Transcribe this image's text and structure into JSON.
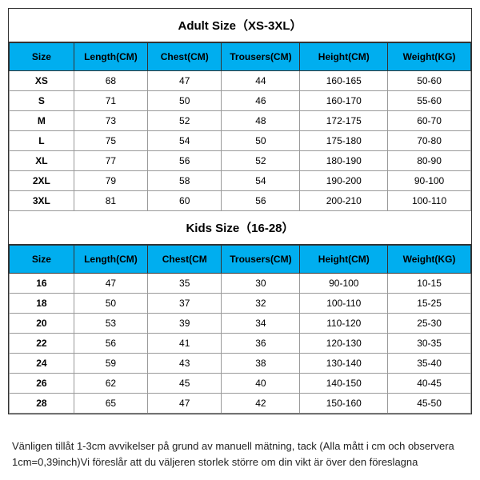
{
  "adult": {
    "title": "Adult Size（XS-3XL）",
    "columns": [
      "Size",
      "Length(CM)",
      "Chest(CM)",
      "Trousers(CM)",
      "Height(CM)",
      "Weight(KG)"
    ],
    "rows": [
      [
        "XS",
        "68",
        "47",
        "44",
        "160-165",
        "50-60"
      ],
      [
        "S",
        "71",
        "50",
        "46",
        "160-170",
        "55-60"
      ],
      [
        "M",
        "73",
        "52",
        "48",
        "172-175",
        "60-70"
      ],
      [
        "L",
        "75",
        "54",
        "50",
        "175-180",
        "70-80"
      ],
      [
        "XL",
        "77",
        "56",
        "52",
        "180-190",
        "80-90"
      ],
      [
        "2XL",
        "79",
        "58",
        "54",
        "190-200",
        "90-100"
      ],
      [
        "3XL",
        "81",
        "60",
        "56",
        "200-210",
        "100-110"
      ]
    ]
  },
  "kids": {
    "title": "Kids Size（16-28）",
    "columns": [
      "Size",
      "Length(CM)",
      "Chest(CM",
      "Trousers(CM)",
      "Height(CM)",
      "Weight(KG)"
    ],
    "rows": [
      [
        "16",
        "47",
        "35",
        "30",
        "90-100",
        "10-15"
      ],
      [
        "18",
        "50",
        "37",
        "32",
        "100-110",
        "15-25"
      ],
      [
        "20",
        "53",
        "39",
        "34",
        "110-120",
        "25-30"
      ],
      [
        "22",
        "56",
        "41",
        "36",
        "120-130",
        "30-35"
      ],
      [
        "24",
        "59",
        "43",
        "38",
        "130-140",
        "35-40"
      ],
      [
        "26",
        "62",
        "45",
        "40",
        "140-150",
        "40-45"
      ],
      [
        "28",
        "65",
        "47",
        "42",
        "150-160",
        "45-50"
      ]
    ]
  },
  "note": "Vänligen tillåt 1-3cm avvikelser på grund av manuell mätning, tack (Alla mått i cm och observera 1cm=0,39inch)Vi föreslår att du väljeren storlek större om din vikt är över den föreslagna",
  "style": {
    "header_bg": "#00aeef",
    "border_color": "#333333",
    "cell_border": "#999999",
    "title_fontsize": 15,
    "cell_fontsize": 12,
    "note_fontsize": 13
  }
}
